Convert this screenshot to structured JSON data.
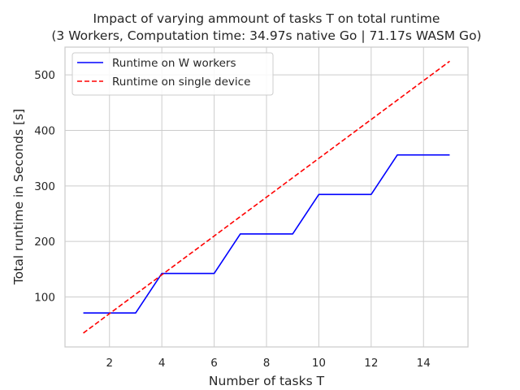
{
  "chart_data": {
    "type": "line",
    "title": "Impact of varying ammount of tasks T on total runtime",
    "subtitle": "(3 Workers, Computation time: 34.97s native Go | 71.17s WASM Go)",
    "xlabel": "Number of tasks T",
    "ylabel": "Total runtime in Seconds [s]",
    "xlim": [
      0.3,
      15.7
    ],
    "ylim": [
      10,
      550
    ],
    "xticks": [
      2,
      4,
      6,
      8,
      10,
      12,
      14
    ],
    "yticks": [
      100,
      200,
      300,
      400,
      500
    ],
    "grid": true,
    "legend_position": "top-left",
    "series": [
      {
        "name": "Runtime on W workers",
        "color": "#0000ff",
        "style": "solid",
        "x": [
          1,
          2,
          3,
          4,
          5,
          6,
          7,
          8,
          9,
          10,
          11,
          12,
          13,
          14,
          15
        ],
        "y": [
          71.17,
          71.17,
          71.17,
          142.34,
          142.34,
          142.34,
          213.51,
          213.51,
          213.51,
          284.68,
          284.68,
          284.68,
          355.85,
          355.85,
          355.85
        ]
      },
      {
        "name": "Runtime on single device",
        "color": "#ff0000",
        "style": "dashed",
        "x": [
          1,
          2,
          3,
          4,
          5,
          6,
          7,
          8,
          9,
          10,
          11,
          12,
          13,
          14,
          15
        ],
        "y": [
          34.97,
          69.94,
          104.91,
          139.88,
          174.85,
          209.82,
          244.79,
          279.76,
          314.73,
          349.7,
          384.67,
          419.64,
          454.61,
          489.58,
          524.55
        ]
      }
    ]
  }
}
